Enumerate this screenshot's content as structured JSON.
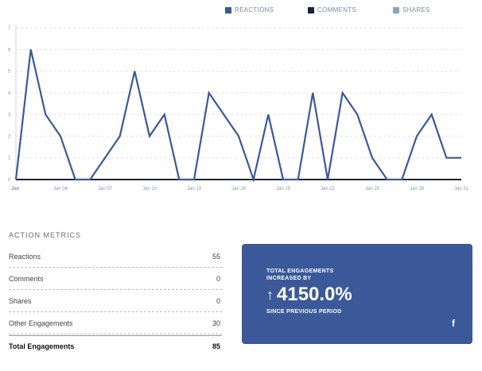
{
  "legend": [
    {
      "label": "REACTIONS",
      "color": "#3b5998"
    },
    {
      "label": "COMMENTS",
      "color": "#1a2340"
    },
    {
      "label": "SHARES",
      "color": "#8ea4c4"
    }
  ],
  "chart_data": {
    "type": "line",
    "categories": [
      "Jan 01",
      "Jan 02",
      "Jan 03",
      "Jan 04",
      "Jan 05",
      "Jan 06",
      "Jan 07",
      "Jan 08",
      "Jan 09",
      "Jan 10",
      "Jan 11",
      "Jan 12",
      "Jan 13",
      "Jan 14",
      "Jan 15",
      "Jan 16",
      "Jan 17",
      "Jan 18",
      "Jan 19",
      "Jan 20",
      "Jan 21",
      "Jan 22",
      "Jan 23",
      "Jan 24",
      "Jan 25",
      "Jan 26",
      "Jan 27",
      "Jan 28",
      "Jan 29",
      "Jan 30",
      "Jan 31"
    ],
    "x_tick_labels": [
      {
        "index": 0,
        "label": "Jan",
        "bold": true
      },
      {
        "index": 3,
        "label": "Jan 04"
      },
      {
        "index": 6,
        "label": "Jan 07"
      },
      {
        "index": 9,
        "label": "Jan 10"
      },
      {
        "index": 12,
        "label": "Jan 13"
      },
      {
        "index": 15,
        "label": "Jan 16"
      },
      {
        "index": 18,
        "label": "Jan 19"
      },
      {
        "index": 21,
        "label": "Jan 22"
      },
      {
        "index": 24,
        "label": "Jan 25"
      },
      {
        "index": 27,
        "label": "Jan 28"
      },
      {
        "index": 30,
        "label": "Jan 31"
      }
    ],
    "y_ticks": [
      0,
      1,
      2,
      3,
      4,
      5,
      6,
      7
    ],
    "ylim": [
      0,
      7
    ],
    "grid": true,
    "legend_position": "top-right",
    "series": [
      {
        "name": "REACTIONS",
        "color": "#3b5998",
        "values": [
          0,
          6,
          3,
          2,
          0,
          0,
          1,
          2,
          5,
          2,
          3,
          0,
          0,
          4,
          3,
          2,
          0,
          3,
          0,
          0,
          4,
          0,
          4,
          3,
          1,
          0,
          0,
          2,
          3,
          1,
          1
        ]
      },
      {
        "name": "COMMENTS",
        "color": "#1a2340",
        "values": [
          0,
          0,
          0,
          0,
          0,
          0,
          0,
          0,
          0,
          0,
          0,
          0,
          0,
          0,
          0,
          0,
          0,
          0,
          0,
          0,
          0,
          0,
          0,
          0,
          0,
          0,
          0,
          0,
          0,
          0,
          0
        ]
      },
      {
        "name": "SHARES",
        "color": "#8ea4c4",
        "values": [
          0,
          0,
          0,
          0,
          0,
          0,
          0,
          0,
          0,
          0,
          0,
          0,
          0,
          0,
          0,
          0,
          0,
          0,
          0,
          0,
          0,
          0,
          0,
          0,
          0,
          0,
          0,
          0,
          0,
          0,
          0
        ]
      }
    ]
  },
  "metrics": {
    "title": "ACTION METRICS",
    "rows": [
      {
        "label": "Reactions",
        "value": "55"
      },
      {
        "label": "Comments",
        "value": "0"
      },
      {
        "label": "Shares",
        "value": "0"
      },
      {
        "label": "Other Engagements",
        "value": "30"
      }
    ],
    "total": {
      "label": "Total Engagements",
      "value": "85"
    }
  },
  "card": {
    "heading": "TOTAL ENGAGEMENTS INCREASED BY",
    "arrow": "↑",
    "value": "4150.0%",
    "sub": "SINCE PREVIOUS PERIOD",
    "icon": "f",
    "color": "#3b5998"
  }
}
